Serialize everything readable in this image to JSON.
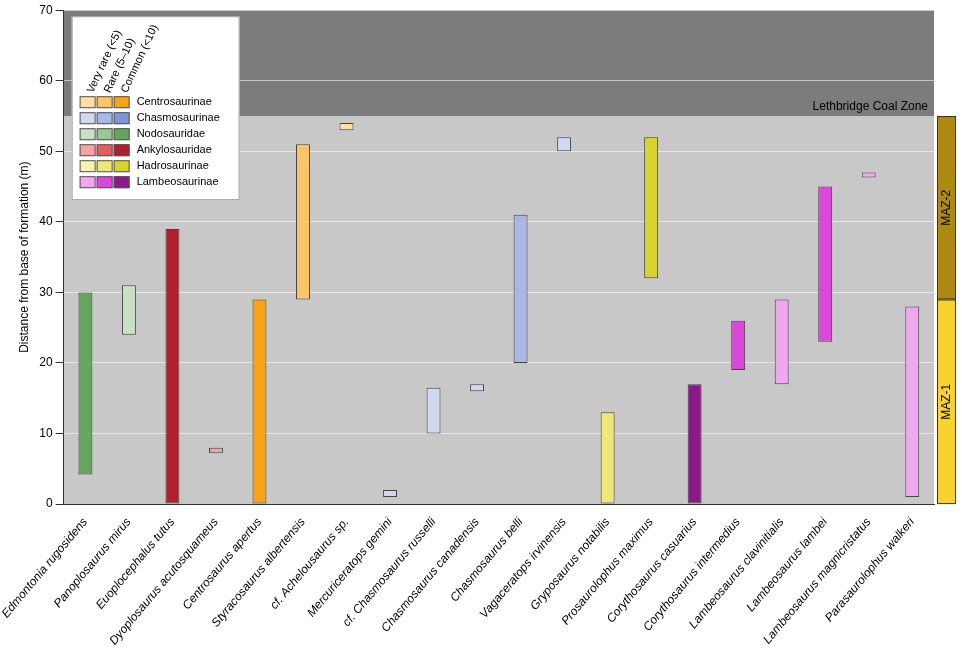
{
  "chart_data": {
    "type": "bar",
    "y_label": "Distance from base of formation (m)",
    "categories": [
      "Edmontonia rugosidens",
      "Panoplosaurus mirus",
      "Euoplocephalus tutus",
      "Dyoplosaurus acutosquameus",
      "Centrosaurus apertus",
      "Styracosaurus albertensis",
      "cf. Achelousaurus sp.",
      "Mercuriceratops gemini",
      "cf. Chasmosaurus russelli",
      "Chasmosaurus canadensis",
      "Chasmosaurus belli",
      "Vagaceratops irvinensis",
      "Gryposaurus notabilis",
      "Prosaurolophus maximus",
      "Corythosaurus casuarius",
      "Corythosaurus intermedius",
      "Lambeosaurus clavinitialis",
      "Lambeosaurus lambei",
      "Lambeosaurus magnicristatus",
      "Parasaurolophus walkeri"
    ],
    "values": [
      [
        4.2,
        30
      ],
      [
        24,
        31
      ],
      [
        0,
        39
      ],
      [
        7.2,
        8
      ],
      [
        0,
        29
      ],
      [
        29,
        51
      ],
      [
        53,
        54
      ],
      [
        1,
        2
      ],
      [
        10,
        16.5
      ],
      [
        16,
        17
      ],
      [
        20,
        41
      ],
      [
        50,
        52
      ],
      [
        0,
        13
      ],
      [
        32,
        52
      ],
      [
        0,
        17
      ],
      [
        19,
        26
      ],
      [
        17,
        29
      ],
      [
        23,
        45
      ],
      [
        46.3,
        47
      ],
      [
        1,
        28
      ]
    ],
    "colors": [
      "#66a55e",
      "#c9e0c4",
      "#b01f2e",
      "#f2a3a3",
      "#f7a21b",
      "#fbc46b",
      "#fddfa8",
      "#cfd8f0",
      "#cfd8f0",
      "#cfd8f0",
      "#a8b7e4",
      "#cfd8f0",
      "#efe878",
      "#d9d32f",
      "#8a1a8a",
      "#d948d9",
      "#efa8ef",
      "#d948d9",
      "#efa8ef",
      "#efa8ef"
    ],
    "ylim": [
      0,
      70
    ],
    "yticks": [
      0,
      10,
      20,
      30,
      40,
      50,
      60,
      70
    ],
    "grid": true,
    "legend": "upper left",
    "legend_columns": [
      "Very rare (<5)",
      "Rare (5–10)",
      "Common (<10)"
    ],
    "legend_groups": [
      {
        "name": "Centrosaurinae",
        "colors": [
          "#fddfa8",
          "#fbc46b",
          "#f7a21b"
        ]
      },
      {
        "name": "Chasmosaurinae",
        "colors": [
          "#cfd8f0",
          "#a8b7e4",
          "#7f95d6"
        ]
      },
      {
        "name": "Nodosauridae",
        "colors": [
          "#c9e0c4",
          "#9bc795",
          "#66a55e"
        ]
      },
      {
        "name": "Ankylosauridae",
        "colors": [
          "#f2a3a3",
          "#e25f5f",
          "#b01f2e"
        ]
      },
      {
        "name": "Hadrosaurinae",
        "colors": [
          "#f6f2b0",
          "#efe878",
          "#d9d32f"
        ]
      },
      {
        "name": "Lambeosaurinae",
        "colors": [
          "#efa8ef",
          "#d948d9",
          "#8a1a8a"
        ]
      }
    ],
    "coal_zone": {
      "label": "Lethbridge Coal Zone",
      "value": 55
    },
    "zones": [
      {
        "name": "MAZ-1",
        "range": [
          0,
          29
        ],
        "color": "#f9d230"
      },
      {
        "name": "MAZ-2",
        "range": [
          29,
          55
        ],
        "color": "#ae8a12"
      }
    ]
  }
}
